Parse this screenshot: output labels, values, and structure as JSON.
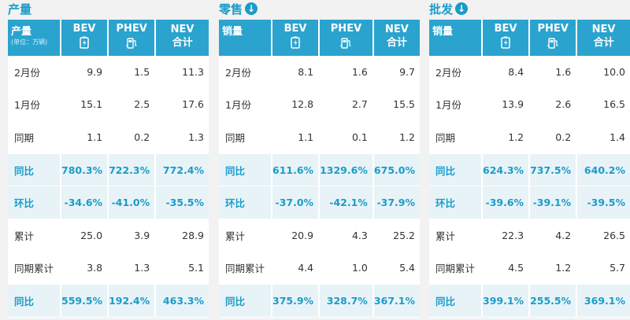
{
  "panels": [
    {
      "title": "产量",
      "has_arrow": false,
      "header": {
        "label": "产量",
        "unit": "(单位：万辆)",
        "bev": "BEV",
        "phev": "PHEV",
        "nev_line1": "NEV",
        "nev_line2": "合计"
      },
      "rows": [
        {
          "label": "2月份",
          "bev": "9.9",
          "phev": "1.5",
          "nev": "11.3",
          "highlight": false
        },
        {
          "label": "1月份",
          "bev": "15.1",
          "phev": "2.5",
          "nev": "17.6",
          "highlight": false
        },
        {
          "label": "同期",
          "bev": "1.1",
          "phev": "0.2",
          "nev": "1.3",
          "highlight": false
        },
        {
          "label": "同比",
          "bev": "780.3%",
          "phev": "722.3%",
          "nev": "772.4%",
          "highlight": true
        },
        {
          "label": "环比",
          "bev": "-34.6%",
          "phev": "-41.0%",
          "nev": "-35.5%",
          "highlight": true
        },
        {
          "label": "累计",
          "bev": "25.0",
          "phev": "3.9",
          "nev": "28.9",
          "highlight": false
        },
        {
          "label": "同期累计",
          "bev": "3.8",
          "phev": "1.3",
          "nev": "5.1",
          "highlight": false
        },
        {
          "label": "同比",
          "bev": "559.5%",
          "phev": "192.4%",
          "nev": "463.3%",
          "highlight": true
        }
      ]
    },
    {
      "title": "零售",
      "has_arrow": true,
      "header": {
        "label": "销量",
        "unit": "",
        "bev": "BEV",
        "phev": "PHEV",
        "nev_line1": "NEV",
        "nev_line2": "合计"
      },
      "rows": [
        {
          "label": "2月份",
          "bev": "8.1",
          "phev": "1.6",
          "nev": "9.7",
          "highlight": false
        },
        {
          "label": "1月份",
          "bev": "12.8",
          "phev": "2.7",
          "nev": "15.5",
          "highlight": false
        },
        {
          "label": "同期",
          "bev": "1.1",
          "phev": "0.1",
          "nev": "1.2",
          "highlight": false
        },
        {
          "label": "同比",
          "bev": "611.6%",
          "phev": "1329.6%",
          "nev": "675.0%",
          "highlight": true
        },
        {
          "label": "环比",
          "bev": "-37.0%",
          "phev": "-42.1%",
          "nev": "-37.9%",
          "highlight": true
        },
        {
          "label": "累计",
          "bev": "20.9",
          "phev": "4.3",
          "nev": "25.2",
          "highlight": false
        },
        {
          "label": "同期累计",
          "bev": "4.4",
          "phev": "1.0",
          "nev": "5.4",
          "highlight": false
        },
        {
          "label": "同比",
          "bev": "375.9%",
          "phev": "328.7%",
          "nev": "367.1%",
          "highlight": true
        }
      ]
    },
    {
      "title": "批发",
      "has_arrow": true,
      "header": {
        "label": "销量",
        "unit": "",
        "bev": "BEV",
        "phev": "PHEV",
        "nev_line1": "NEV",
        "nev_line2": "合计"
      },
      "rows": [
        {
          "label": "2月份",
          "bev": "8.4",
          "phev": "1.6",
          "nev": "10.0",
          "highlight": false
        },
        {
          "label": "1月份",
          "bev": "13.9",
          "phev": "2.6",
          "nev": "16.5",
          "highlight": false
        },
        {
          "label": "同期",
          "bev": "1.2",
          "phev": "0.2",
          "nev": "1.4",
          "highlight": false
        },
        {
          "label": "同比",
          "bev": "624.3%",
          "phev": "737.5%",
          "nev": "640.2%",
          "highlight": true
        },
        {
          "label": "环比",
          "bev": "-39.6%",
          "phev": "-39.1%",
          "nev": "-39.5%",
          "highlight": true
        },
        {
          "label": "累计",
          "bev": "22.3",
          "phev": "4.2",
          "nev": "26.5",
          "highlight": false
        },
        {
          "label": "同期累计",
          "bev": "4.5",
          "phev": "1.2",
          "nev": "5.7",
          "highlight": false
        },
        {
          "label": "同比",
          "bev": "399.1%",
          "phev": "255.5%",
          "nev": "369.1%",
          "highlight": true
        }
      ]
    }
  ],
  "icons": {
    "arrow": "arrow-down-circle-icon",
    "bev": "battery-icon",
    "phev": "fuel-pump-plug-icon"
  },
  "colors": {
    "accent": "#2aa3cf",
    "title": "#1a9cc9",
    "highlight_bg": "#e8f3f8"
  }
}
